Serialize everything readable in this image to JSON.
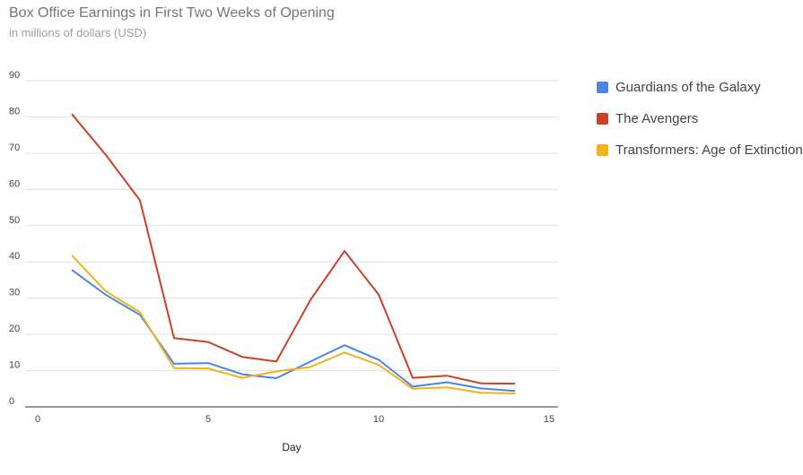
{
  "chart_data": {
    "type": "line",
    "title": "Box Office Earnings in First Two Weeks of Opening",
    "subtitle": "in millions of dollars (USD)",
    "xlabel": "Day",
    "ylabel": "",
    "xlim": [
      0,
      15
    ],
    "ylim": [
      0,
      90
    ],
    "x_ticks": [
      0,
      5,
      10,
      15
    ],
    "y_ticks": [
      0,
      10,
      20,
      30,
      40,
      50,
      60,
      70,
      80,
      90
    ],
    "grid": true,
    "legend_position": "right",
    "x": [
      1,
      2,
      3,
      4,
      5,
      6,
      7,
      8,
      9,
      10,
      11,
      12,
      13,
      14
    ],
    "series": [
      {
        "name": "Guardians of the Galaxy",
        "color": "#4a86e8",
        "values": [
          37.8,
          30.9,
          25.4,
          11.9,
          12.1,
          9.0,
          7.9,
          12.5,
          17.0,
          13.0,
          5.6,
          6.8,
          5.1,
          4.4
        ]
      },
      {
        "name": "The Avengers",
        "color": "#cc4125",
        "values": [
          80.8,
          69.5,
          57.0,
          19.0,
          17.9,
          13.8,
          12.5,
          29.5,
          43.0,
          31.0,
          8.0,
          8.6,
          6.5,
          6.4
        ]
      },
      {
        "name": "Transformers: Age of Extinction",
        "color": "#f1b31c",
        "values": [
          41.8,
          31.9,
          26.1,
          10.7,
          10.6,
          8.0,
          9.8,
          11.0,
          15.0,
          11.6,
          5.0,
          5.4,
          3.9,
          3.7
        ]
      }
    ]
  }
}
